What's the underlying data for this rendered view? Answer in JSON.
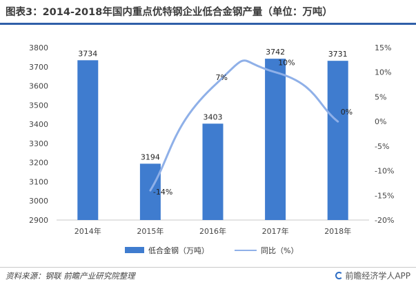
{
  "title": "图表3：2014-2018年国内重点优特钢企业低合金钢产量（单位：万吨）",
  "source": "资料来源：钢联  前瞻产业研究院整理",
  "brand": "前瞻经济学人APP",
  "colors": {
    "bar": "#3f7ccf",
    "line": "#8fb0e8",
    "title_rule": "#2f5fa8",
    "grid": "#e6e6e6"
  },
  "chart_data": {
    "type": "bar",
    "categories": [
      "2014年",
      "2015年",
      "2016年",
      "2017年",
      "2018年"
    ],
    "series": [
      {
        "name": "低合金钢（万吨）",
        "type": "bar",
        "axis": "left",
        "values": [
          3734,
          3194,
          3403,
          3742,
          3731
        ],
        "labels": [
          "3734",
          "3194",
          "3403",
          "3742",
          "3731"
        ]
      },
      {
        "name": "同比（%）",
        "type": "line",
        "axis": "right",
        "smooth": true,
        "values": [
          null,
          -14,
          7,
          10,
          0
        ],
        "labels": [
          "",
          "-14%",
          "7%",
          "10%",
          "0%"
        ]
      }
    ],
    "ylim": [
      2900,
      3800
    ],
    "y_ticks": [
      "2900",
      "3000",
      "3100",
      "3200",
      "3300",
      "3400",
      "3500",
      "3600",
      "3700",
      "3800"
    ],
    "y2lim": [
      -20,
      15
    ],
    "y2_ticks": [
      "-20%",
      "-15%",
      "-10%",
      "-5%",
      "0%",
      "5%",
      "10%",
      "15%"
    ],
    "legend": "bottom",
    "grid": false
  }
}
